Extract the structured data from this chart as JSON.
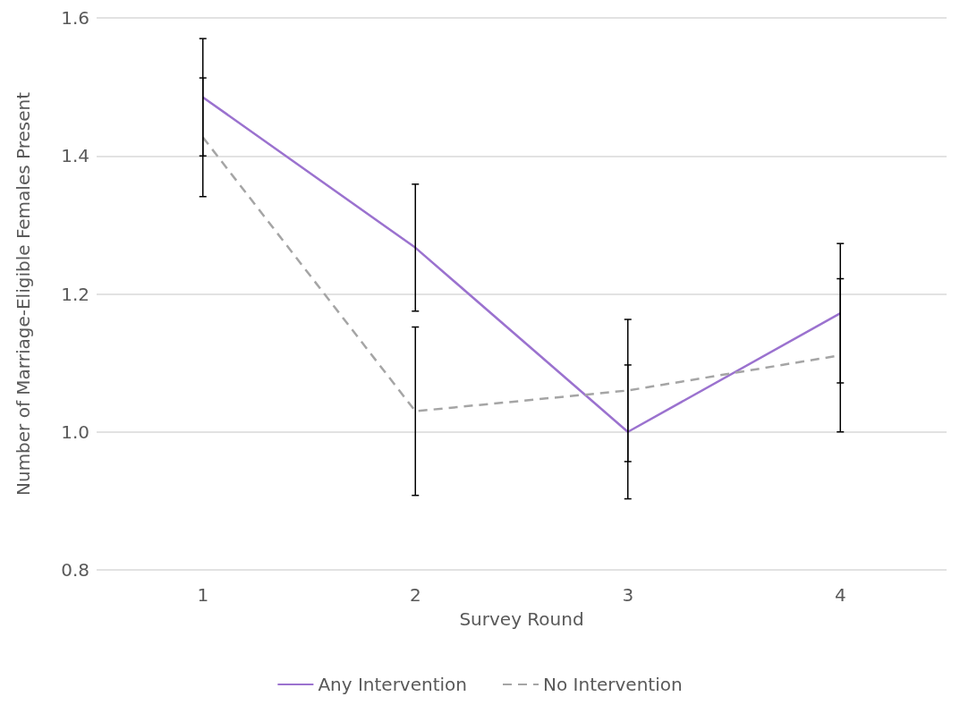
{
  "chart_data": {
    "type": "line",
    "xlabel": "Survey Round",
    "ylabel": "Number of Marriage-Eligible Females Present",
    "categories": [
      "1",
      "2",
      "3",
      "4"
    ],
    "series": [
      {
        "name": "Any Intervention",
        "color": "#9b72cf",
        "line_style": "solid",
        "values": [
          1.485,
          1.267,
          1.0,
          1.172
        ],
        "errors": [
          0.085,
          0.092,
          0.097,
          0.101
        ]
      },
      {
        "name": "No Intervention",
        "color": "#a5a5a5",
        "line_style": "dashed",
        "values": [
          1.427,
          1.03,
          1.06,
          1.111
        ],
        "errors": [
          0.086,
          0.122,
          0.103,
          0.111
        ]
      }
    ],
    "ylim": [
      0.8,
      1.6
    ],
    "yticks": [
      0.8,
      {
        "value": 1,
        "label": "1.0"
      },
      1.2,
      1.4,
      1.6
    ],
    "grid": "y",
    "legend": "bottom",
    "marker": "none"
  }
}
